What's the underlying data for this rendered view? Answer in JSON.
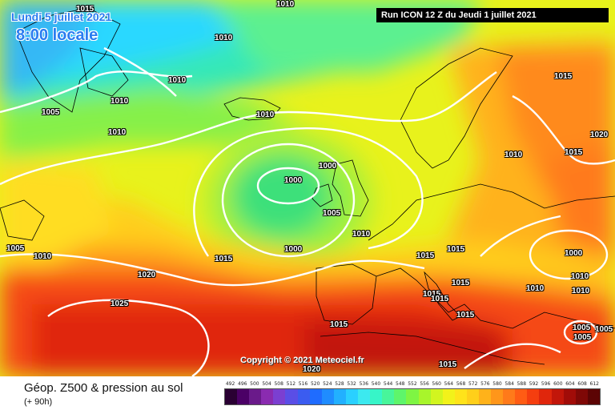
{
  "header": {
    "date_label": "Lundi 5 juillet 2021",
    "time_label": "8:00 locale",
    "run_label": "Run ICON 12 Z du Jeudi 1 juillet 2021"
  },
  "map": {
    "copyright": "Copyright © 2021 Meteociel.fr",
    "isobar_labels": [
      "1015",
      "1010",
      "1010",
      "1010",
      "1010",
      "1005",
      "1010",
      "1010",
      "1000",
      "1000",
      "1005",
      "1010",
      "1015",
      "1000",
      "1005",
      "1010",
      "1020",
      "1025",
      "1015",
      "1015",
      "1015",
      "1015",
      "1015",
      "1015",
      "1015",
      "1020",
      "1015",
      "1010",
      "1000",
      "1010",
      "1005",
      "1005",
      "1005",
      "1010",
      "1015",
      "1020",
      "1015",
      "1010"
    ]
  },
  "footer": {
    "title": "Géop. Z500 & pression au sol",
    "subtitle": "(+ 90h)"
  },
  "legend": {
    "values": [
      "492",
      "496",
      "500",
      "504",
      "508",
      "512",
      "516",
      "520",
      "524",
      "528",
      "532",
      "536",
      "540",
      "544",
      "548",
      "552",
      "556",
      "560",
      "564",
      "568",
      "572",
      "576",
      "580",
      "584",
      "588",
      "592",
      "596",
      "600",
      "604",
      "608",
      "612"
    ],
    "colors": [
      "#2a0033",
      "#4b0066",
      "#6a1a8a",
      "#8a2bb0",
      "#7b3fd1",
      "#5a4ee6",
      "#3b5cf0",
      "#1f6cff",
      "#1f8cff",
      "#22b0ff",
      "#2ad0ff",
      "#3ce9ef",
      "#37f5c8",
      "#48f59a",
      "#5ef56b",
      "#7ef543",
      "#a8f52b",
      "#d2f51f",
      "#f2f21a",
      "#ffe31a",
      "#ffcf1a",
      "#ffb21a",
      "#ff961a",
      "#ff7a1a",
      "#ff5c14",
      "#f53e0f",
      "#e0260c",
      "#c2160a",
      "#a10c08",
      "#7f0806",
      "#5c0404"
    ]
  }
}
